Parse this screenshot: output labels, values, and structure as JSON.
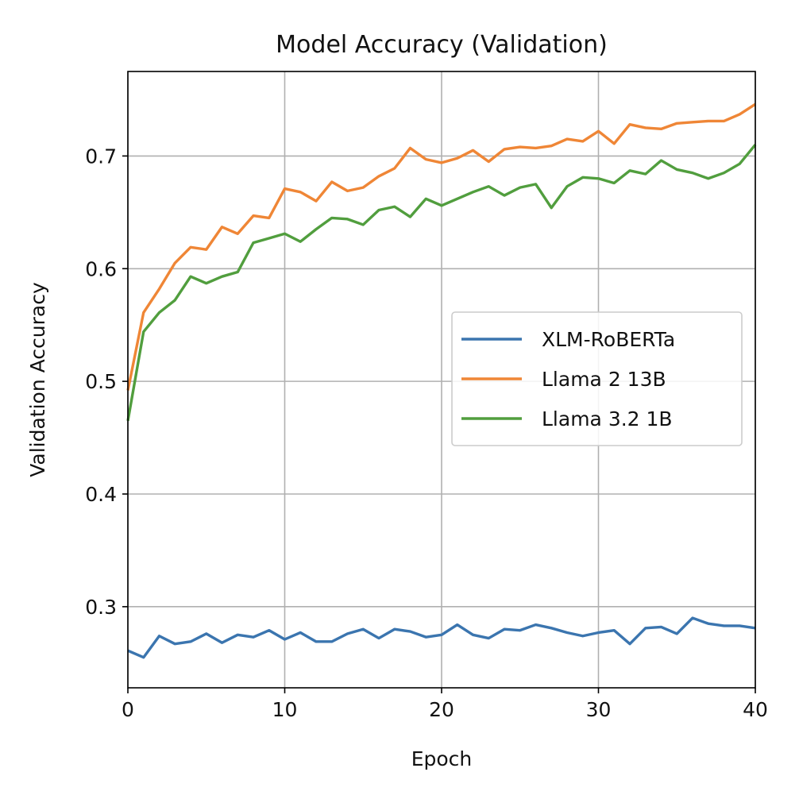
{
  "chart_data": {
    "type": "line",
    "title": "Model Accuracy (Validation)",
    "xlabel": "Epoch",
    "ylabel": "Validation Accuracy",
    "xlim": [
      0,
      40
    ],
    "ylim": [
      0.228,
      0.775
    ],
    "xticks": [
      0,
      10,
      20,
      30,
      40
    ],
    "yticks": [
      0.3,
      0.4,
      0.5,
      0.6,
      0.7
    ],
    "ytick_labels": [
      "0.3",
      "0.4",
      "0.5",
      "0.6",
      "0.7"
    ],
    "grid": true,
    "legend_position": "center-right",
    "x": [
      0,
      1,
      2,
      3,
      4,
      5,
      6,
      7,
      8,
      9,
      10,
      11,
      12,
      13,
      14,
      15,
      16,
      17,
      18,
      19,
      20,
      21,
      22,
      23,
      24,
      25,
      26,
      27,
      28,
      29,
      30,
      31,
      32,
      33,
      34,
      35,
      36,
      37,
      38,
      39,
      40
    ],
    "series": [
      {
        "name": "XLM-RoBERTa",
        "color": "#3b75af",
        "values": [
          0.261,
          0.255,
          0.274,
          0.267,
          0.269,
          0.276,
          0.268,
          0.275,
          0.273,
          0.279,
          0.271,
          0.277,
          0.269,
          0.269,
          0.276,
          0.28,
          0.272,
          0.28,
          0.278,
          0.273,
          0.275,
          0.284,
          0.275,
          0.272,
          0.28,
          0.279,
          0.284,
          0.281,
          0.277,
          0.274,
          0.277,
          0.279,
          0.267,
          0.281,
          0.282,
          0.276,
          0.29,
          0.285,
          0.283,
          0.283,
          0.281
        ]
      },
      {
        "name": "Llama 2 13B",
        "color": "#ef8636",
        "values": [
          0.492,
          0.561,
          0.582,
          0.605,
          0.619,
          0.617,
          0.637,
          0.631,
          0.647,
          0.645,
          0.671,
          0.668,
          0.66,
          0.677,
          0.669,
          0.672,
          0.682,
          0.689,
          0.707,
          0.697,
          0.694,
          0.698,
          0.705,
          0.695,
          0.706,
          0.708,
          0.707,
          0.709,
          0.715,
          0.713,
          0.722,
          0.711,
          0.728,
          0.725,
          0.724,
          0.729,
          0.73,
          0.731,
          0.731,
          0.737,
          0.746
        ]
      },
      {
        "name": "Llama 3.2 1B",
        "color": "#519e3e",
        "values": [
          0.465,
          0.544,
          0.561,
          0.572,
          0.593,
          0.587,
          0.593,
          0.597,
          0.623,
          0.627,
          0.631,
          0.624,
          0.635,
          0.645,
          0.644,
          0.639,
          0.652,
          0.655,
          0.646,
          0.662,
          0.656,
          0.662,
          0.668,
          0.673,
          0.665,
          0.672,
          0.675,
          0.654,
          0.673,
          0.681,
          0.68,
          0.676,
          0.687,
          0.684,
          0.696,
          0.688,
          0.685,
          0.68,
          0.685,
          0.693,
          0.71
        ]
      }
    ]
  }
}
